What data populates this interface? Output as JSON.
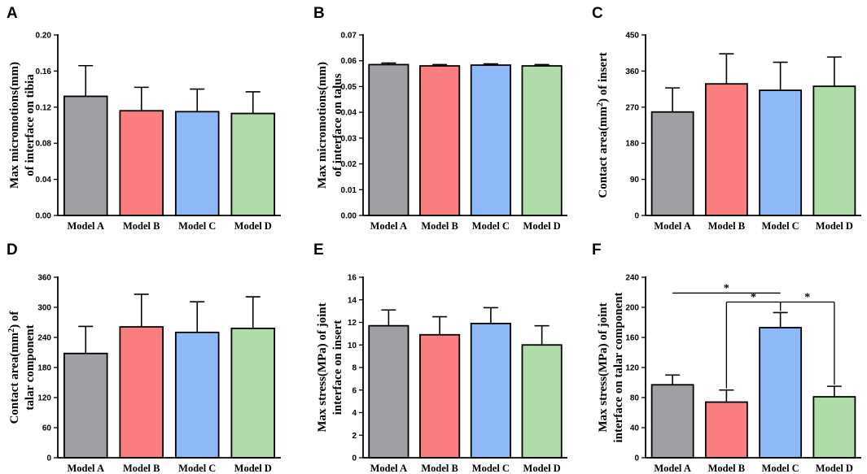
{
  "colors": {
    "Model A": "#a09fa4",
    "Model B": "#fb7e7f",
    "Model C": "#8fbafa",
    "Model D": "#aedda8",
    "stroke": "#000000"
  },
  "chart_data": [
    {
      "type": "bar",
      "panel": "A",
      "ylabel_lines": [
        "Max micromotions(mm)",
        "of interface on tibia"
      ],
      "categories": [
        "Model A",
        "Model B",
        "Model C",
        "Model D"
      ],
      "values": [
        0.132,
        0.116,
        0.115,
        0.113
      ],
      "errors": [
        0.034,
        0.026,
        0.025,
        0.024
      ],
      "ylim": [
        0,
        0.2
      ],
      "yticks": [
        "0.00",
        "0.04",
        "0.08",
        "0.12",
        "0.16",
        "0.20"
      ],
      "significance": []
    },
    {
      "type": "bar",
      "panel": "B",
      "ylabel_lines": [
        "Max micromotions(mm)",
        "of interface on talus"
      ],
      "categories": [
        "Model A",
        "Model B",
        "Model C",
        "Model D"
      ],
      "values": [
        0.0585,
        0.058,
        0.0583,
        0.058
      ],
      "errors": [
        0.0006,
        0.0005,
        0.0005,
        0.0005
      ],
      "ylim": [
        0,
        0.07
      ],
      "yticks": [
        "0.00",
        "0.01",
        "0.02",
        "0.03",
        "0.04",
        "0.05",
        "0.06",
        "0.07"
      ],
      "significance": []
    },
    {
      "type": "bar",
      "panel": "C",
      "ylabel_lines": [
        "Contact area(mm²) of insert"
      ],
      "ylabel_base": "Contact area(mm",
      "ylabel_sup": "2",
      "ylabel_rest": ") of insert",
      "categories": [
        "Model A",
        "Model B",
        "Model C",
        "Model D"
      ],
      "values": [
        258,
        328,
        312,
        322
      ],
      "errors": [
        60,
        75,
        70,
        73
      ],
      "ylim": [
        0,
        450
      ],
      "yticks": [
        "0",
        "90",
        "180",
        "270",
        "360",
        "450"
      ],
      "significance": []
    },
    {
      "type": "bar",
      "panel": "D",
      "ylabel_lines": [
        "Contact area(mm²) of",
        "talar component"
      ],
      "ylabel_base": "Contact area(mm",
      "ylabel_sup": "2",
      "ylabel_rest": ") of",
      "ylabel_line2": "talar component",
      "categories": [
        "Model A",
        "Model B",
        "Model C",
        "Model D"
      ],
      "values": [
        208,
        261,
        250,
        258
      ],
      "errors": [
        54,
        65,
        61,
        63
      ],
      "ylim": [
        0,
        360
      ],
      "yticks": [
        "0",
        "60",
        "120",
        "180",
        "240",
        "300",
        "360"
      ],
      "significance": []
    },
    {
      "type": "bar",
      "panel": "E",
      "ylabel_lines": [
        "Max stress(MPa) of joint",
        "interface on insert"
      ],
      "categories": [
        "Model A",
        "Model B",
        "Model C",
        "Model D"
      ],
      "values": [
        11.7,
        10.9,
        11.9,
        10.0
      ],
      "errors": [
        1.4,
        1.6,
        1.4,
        1.7
      ],
      "ylim": [
        0,
        16
      ],
      "yticks": [
        "0",
        "2",
        "4",
        "6",
        "8",
        "10",
        "12",
        "14",
        "16"
      ],
      "significance": []
    },
    {
      "type": "bar",
      "panel": "F",
      "ylabel_lines": [
        "Max stress(MPa) of joint",
        "interface on talar component"
      ],
      "categories": [
        "Model A",
        "Model B",
        "Model C",
        "Model D"
      ],
      "values": [
        97,
        74,
        173,
        81
      ],
      "errors": [
        13,
        16,
        20,
        14
      ],
      "ylim": [
        0,
        240
      ],
      "yticks": [
        "0",
        "40",
        "80",
        "120",
        "160",
        "200",
        "240"
      ],
      "significance": [
        {
          "from": 0,
          "to": 2,
          "level": 219,
          "label": "*",
          "drop": false
        },
        {
          "from": 1,
          "to": 2,
          "level": 207,
          "label": "*",
          "drop": true
        },
        {
          "from": 2,
          "to": 3,
          "level": 207,
          "label": "*",
          "drop": true
        }
      ]
    }
  ]
}
